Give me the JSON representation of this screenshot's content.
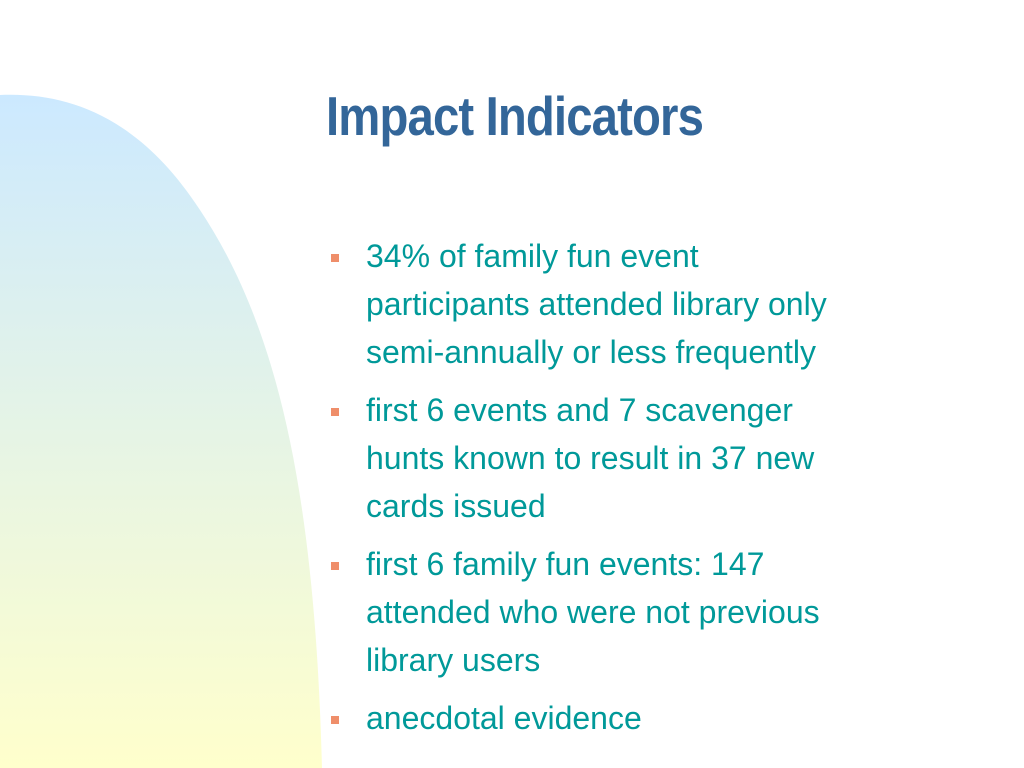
{
  "slide": {
    "title": "Impact Indicators",
    "bullets": [
      {
        "lines": [
          "34% of family fun event",
          "participants attended library only",
          "semi-annually or less frequently"
        ]
      },
      {
        "lines": [
          "first 6 events and 7 scavenger",
          "hunts known to result in 37 new",
          "cards issued"
        ]
      },
      {
        "lines": [
          "first 6 family fun events: 147",
          "attended who were not previous",
          "library users"
        ]
      },
      {
        "lines": [
          "anecdotal evidence"
        ]
      }
    ]
  },
  "theme": {
    "title_color": "#336699",
    "text_color": "#009999",
    "bullet_color": "#ef8e6a",
    "gradient_top": "#cce9ff",
    "gradient_bottom": "#ffffcc"
  },
  "icons": {
    "bullet": "square-bullet-icon"
  }
}
